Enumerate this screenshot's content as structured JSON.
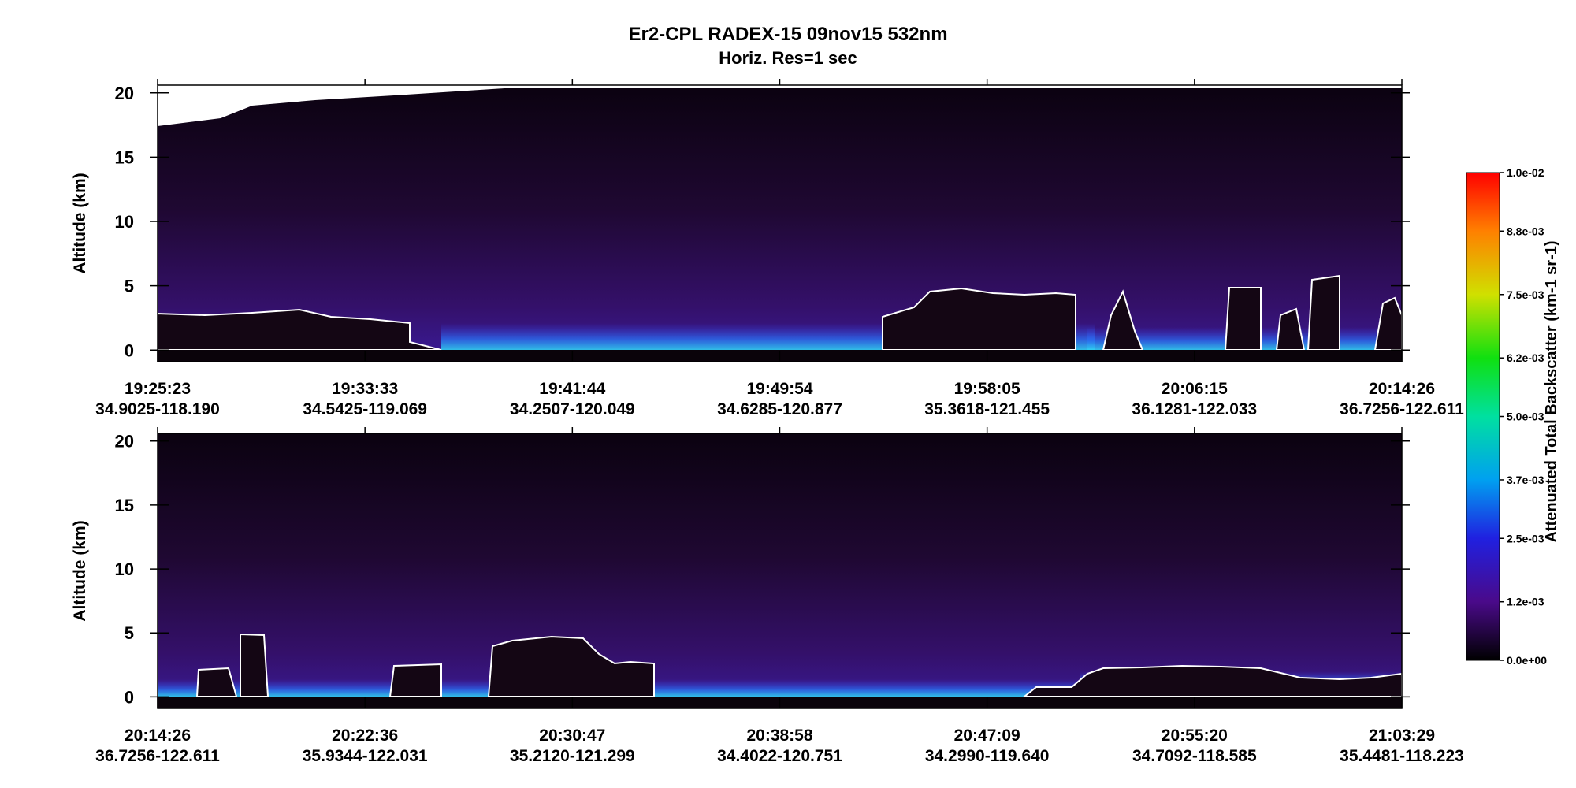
{
  "title": "Er2-CPL  RADEX-15  09nov15  532nm",
  "subtitle": "Horiz. Res=1 sec",
  "colorbar": {
    "label": "Attenuated Total Backscatter (km-1 sr-1)",
    "lim": [
      0,
      0.01
    ],
    "ticks": [
      {
        "value": 0,
        "label": "0.0e+00"
      },
      {
        "value": 0.0012,
        "label": "1.2e-03"
      },
      {
        "value": 0.0025,
        "label": "2.5e-03"
      },
      {
        "value": 0.0037,
        "label": "3.7e-03"
      },
      {
        "value": 0.005,
        "label": "5.0e-03"
      },
      {
        "value": 0.0062,
        "label": "6.2e-03"
      },
      {
        "value": 0.0075,
        "label": "7.5e-03"
      },
      {
        "value": 0.0088,
        "label": "8.8e-03"
      },
      {
        "value": 0.01,
        "label": "1.0e-02"
      }
    ]
  },
  "chart_data": [
    {
      "type": "heatmap",
      "ylabel": "Altitude (km)",
      "ylim": [
        -0.9,
        20.6
      ],
      "yticks": [
        0,
        5,
        10,
        15,
        20
      ],
      "categories": [
        "19:25:23",
        "19:33:33",
        "19:41:44",
        "19:49:54",
        "19:58:05",
        "20:06:15",
        "20:14:26"
      ],
      "locations": [
        "34.9025-118.190",
        "34.5425-119.069",
        "34.2507-120.049",
        "34.6285-120.877",
        "35.3618-121.455",
        "36.1281-122.033",
        "36.7256-122.611"
      ]
    },
    {
      "type": "heatmap",
      "ylabel": "Altitude (km)",
      "ylim": [
        -0.9,
        20.6
      ],
      "yticks": [
        0,
        5,
        10,
        15,
        20
      ],
      "categories": [
        "20:14:26",
        "20:22:36",
        "20:30:47",
        "20:38:58",
        "20:47:09",
        "20:55:20",
        "21:03:29"
      ],
      "locations": [
        "36.7256-122.611",
        "35.9344-122.031",
        "35.2120-121.299",
        "34.4022-120.751",
        "34.2990-119.640",
        "34.7092-118.585",
        "35.4481-118.223"
      ]
    }
  ]
}
